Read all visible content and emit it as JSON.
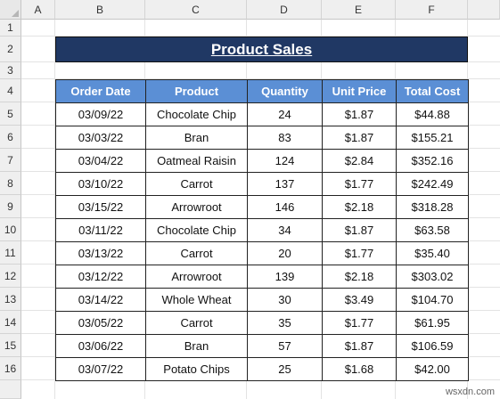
{
  "columns": [
    "A",
    "B",
    "C",
    "D",
    "E",
    "F"
  ],
  "rows": [
    "1",
    "2",
    "3",
    "4",
    "5",
    "6",
    "7",
    "8",
    "9",
    "10",
    "11",
    "12",
    "13",
    "14",
    "15",
    "16"
  ],
  "title": "Product Sales",
  "table": {
    "headers": [
      "Order Date",
      "Product",
      "Quantity",
      "Unit Price",
      "Total Cost"
    ],
    "rows": [
      [
        "03/09/22",
        "Chocolate Chip",
        "24",
        "$1.87",
        "$44.88"
      ],
      [
        "03/03/22",
        "Bran",
        "83",
        "$1.87",
        "$155.21"
      ],
      [
        "03/04/22",
        "Oatmeal Raisin",
        "124",
        "$2.84",
        "$352.16"
      ],
      [
        "03/10/22",
        "Carrot",
        "137",
        "$1.77",
        "$242.49"
      ],
      [
        "03/15/22",
        "Arrowroot",
        "146",
        "$2.18",
        "$318.28"
      ],
      [
        "03/11/22",
        "Chocolate Chip",
        "34",
        "$1.87",
        "$63.58"
      ],
      [
        "03/13/22",
        "Carrot",
        "20",
        "$1.77",
        "$35.40"
      ],
      [
        "03/12/22",
        "Arrowroot",
        "139",
        "$2.18",
        "$303.02"
      ],
      [
        "03/14/22",
        "Whole Wheat",
        "30",
        "$3.49",
        "$104.70"
      ],
      [
        "03/05/22",
        "Carrot",
        "35",
        "$1.77",
        "$61.95"
      ],
      [
        "03/06/22",
        "Bran",
        "57",
        "$1.87",
        "$106.59"
      ],
      [
        "03/07/22",
        "Potato Chips",
        "25",
        "$1.68",
        "$42.00"
      ]
    ]
  },
  "watermark": "wsxdn.com"
}
